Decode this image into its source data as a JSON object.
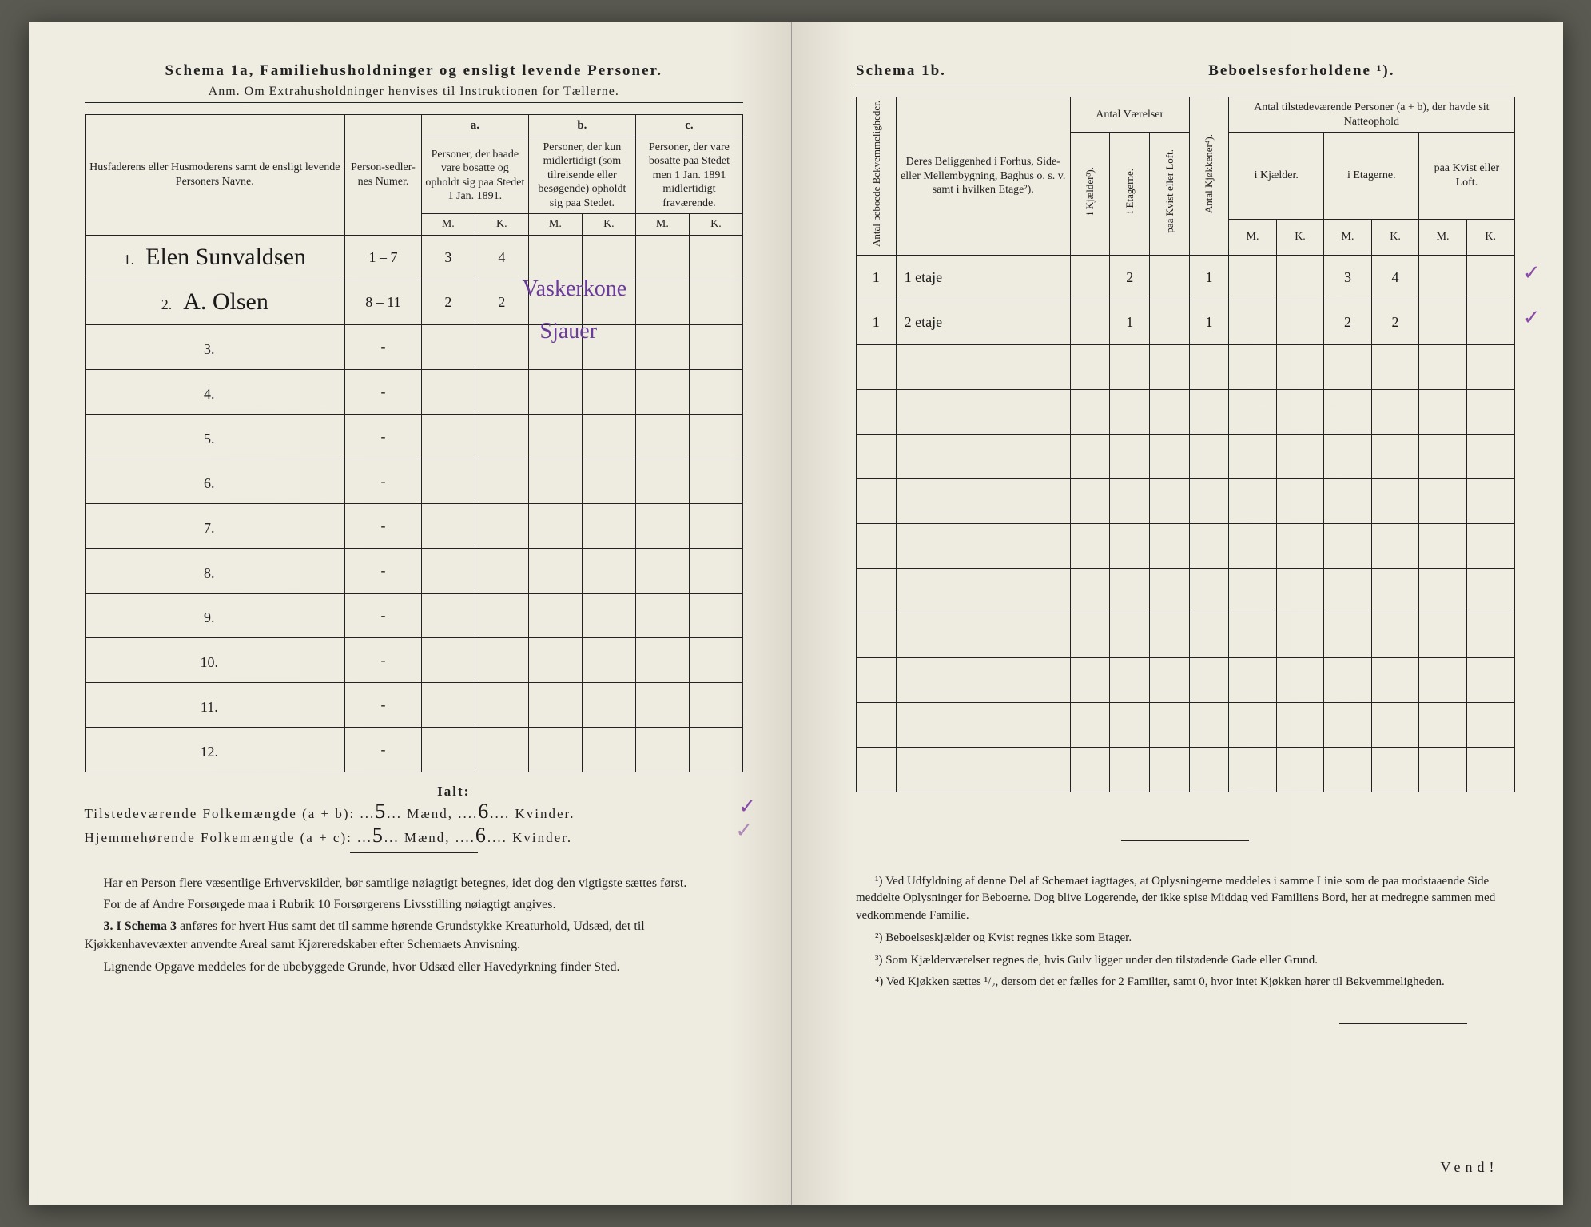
{
  "left": {
    "title": "Schema 1a,  Familiehusholdninger og ensligt levende Personer.",
    "subtitle": "Anm. Om Extrahusholdninger henvises til Instruktionen for Tællerne.",
    "hdr_names": "Husfaderens eller Husmoderens samt de ensligt levende Personers Navne.",
    "hdr_numer": "Person-sedler-nes Numer.",
    "hdr_a": "a.",
    "hdr_b": "b.",
    "hdr_c": "c.",
    "hdr_a_txt": "Personer, der baade vare bosatte og opholdt sig paa Stedet 1 Jan. 1891.",
    "hdr_b_txt": "Personer, der kun midlertidigt (som tilreisende eller besøgende) opholdt sig paa Stedet.",
    "hdr_c_txt": "Personer, der vare bosatte paa Stedet men 1 Jan. 1891 midlertidigt fraværende.",
    "M": "M.",
    "K": "K.",
    "rows": [
      {
        "num": "1.",
        "name": "Elen Sunvaldsen",
        "pnr": "1 – 7",
        "aM": "3",
        "aK": "4"
      },
      {
        "num": "2.",
        "name": "A. Olsen",
        "pnr": "8 – 11",
        "aM": "2",
        "aK": "2"
      },
      {
        "num": "3."
      },
      {
        "num": "4."
      },
      {
        "num": "5."
      },
      {
        "num": "6."
      },
      {
        "num": "7."
      },
      {
        "num": "8."
      },
      {
        "num": "9."
      },
      {
        "num": "10."
      },
      {
        "num": "11."
      },
      {
        "num": "12."
      }
    ],
    "purple1": "Vaskerkone",
    "purple2": "Sjauer",
    "ialt": "Ialt:",
    "line1_label": "Tilstedeværende Folkemængde (a + b): ",
    "line2_label": "Hjemmehørende Folkemængde (a + c): ",
    "maend": "Mænd,",
    "kvinder": "Kvinder.",
    "tot_ab_m": "5",
    "tot_ab_k": "6",
    "tot_ac_m": "5",
    "tot_ac_k": "6",
    "foot_p1": "Har en Person flere væsentlige Erhvervskilder, bør samtlige nøiagtigt betegnes, idet dog den vigtigste sættes først.",
    "foot_p2": "For de af Andre Forsørgede maa i Rubrik 10 Forsørgerens Livsstilling nøiagtigt angives.",
    "foot_p3a": "3. I Schema 3 ",
    "foot_p3b": "anføres for hvert Hus samt det til samme hørende Grundstykke Kreaturhold, Udsæd, det til Kjøkkenhavevæxter anvendte Areal samt Kjøreredskaber efter Schemaets Anvisning.",
    "foot_p4": "Lignende Opgave meddeles for de ubebyggede Grunde, hvor Udsæd eller Havedyrkning finder Sted."
  },
  "right": {
    "title_l": "Schema 1b.",
    "title_r": "Beboelsesforholdene ¹).",
    "hdr_bekv": "Antal beboede Bekvemmeligheder.",
    "hdr_belig": "Deres Beliggenhed i Forhus, Side- eller Mellembygning, Baghus o. s. v. samt i hvilken Etage²).",
    "hdr_vaer": "Antal Værelser",
    "hdr_kj": "i Kjælder³).",
    "hdr_et": "i Etagerne.",
    "hdr_kv": "paa Kvist eller Loft.",
    "hdr_kjok": "Antal Kjøkkener⁴).",
    "hdr_natt": "Antal tilstedeværende Personer (a + b), der havde sit Natteophold",
    "hdr_natt_kj": "i Kjælder.",
    "hdr_natt_et": "i Etagerne.",
    "hdr_natt_kv": "paa Kvist eller Loft.",
    "M": "M.",
    "K": "K.",
    "rows": [
      {
        "bekv": "1",
        "belig": "1 etaje",
        "et": "2",
        "kjok": "1",
        "nEtM": "3",
        "nEtK": "4"
      },
      {
        "bekv": "1",
        "belig": "2 etaje",
        "et": "1",
        "kjok": "1",
        "nEtM": "2",
        "nEtK": "2"
      },
      {},
      {},
      {},
      {},
      {},
      {},
      {},
      {},
      {},
      {}
    ],
    "fn1": "¹) Ved Udfyldning af denne Del af Schemaet iagttages, at Oplysningerne meddeles i samme Linie som de paa modstaaende Side meddelte Oplysninger for Beboerne. Dog blive Logerende, der ikke spise Middag ved Familiens Bord, her at medregne sammen med vedkommende Familie.",
    "fn2": "²) Beboelseskjælder og Kvist regnes ikke som Etager.",
    "fn3": "³) Som Kjælderværelser regnes de, hvis Gulv ligger under den tilstødende Gade eller Grund.",
    "fn4": "⁴) Ved Kjøkken sættes ¹/₂, dersom det er fælles for 2 Familier, samt 0, hvor intet Kjøkken hører til Bekvemmeligheden.",
    "vend": "Vend!"
  }
}
